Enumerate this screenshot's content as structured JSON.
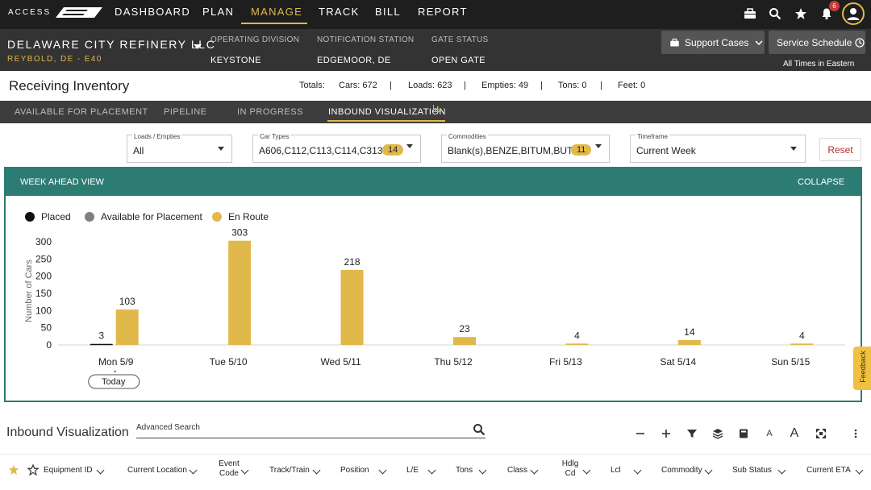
{
  "nav": {
    "brand": "ACCESS",
    "items": [
      "DASHBOARD",
      "PLAN",
      "MANAGE",
      "TRACK",
      "BILL",
      "REPORT"
    ],
    "active": "MANAGE",
    "notifications": "6"
  },
  "account": {
    "company": "DELAWARE CITY REFINERY LLC",
    "location": "REYBOLD, DE - E40",
    "operating_division_label": "OPERATING DIVISION",
    "operating_division": "KEYSTONE",
    "notification_station_label": "NOTIFICATION STATION",
    "notification_station": "EDGEMOOR, DE",
    "gate_status_label": "GATE STATUS",
    "gate_status": "OPEN GATE",
    "support_cases": "Support Cases",
    "service_schedule": "Service Schedule",
    "timezone_note": "All Times in Eastern"
  },
  "page": {
    "title": "Receiving Inventory",
    "totals": {
      "label": "Totals:",
      "cars": "Cars: 672",
      "loads": "Loads: 623",
      "empties": "Empties: 49",
      "tons": "Tons: 0",
      "feet": "Feet: 0",
      "sep": "|"
    }
  },
  "tabs": [
    "AVAILABLE FOR PLACEMENT",
    "PIPELINE",
    "IN PROGRESS",
    "INBOUND VISUALIZATION"
  ],
  "filters": {
    "loads": {
      "label": "Loads / Empties",
      "value": "All"
    },
    "car_types": {
      "label": "Car Types",
      "value": "A606,C112,C113,C114,C313...",
      "count": "14"
    },
    "commodities": {
      "label": "Commodities",
      "value": "Blank(s),BENZE,BITUM,BUT...",
      "count": "11"
    },
    "timeframe": {
      "label": "Timeframe",
      "value": "Current Week"
    },
    "reset": "Reset"
  },
  "panel": {
    "title": "WEEK AHEAD VIEW",
    "collapse": "COLLAPSE",
    "today": "Today"
  },
  "chart_data": {
    "type": "bar",
    "categories": [
      "Mon 5/9",
      "Tue 5/10",
      "Wed 5/11",
      "Thu 5/12",
      "Fri 5/13",
      "Sat 5/14",
      "Sun 5/15"
    ],
    "series": [
      {
        "name": "Placed",
        "color": "#111111",
        "values": [
          3,
          0,
          0,
          0,
          0,
          0,
          0
        ]
      },
      {
        "name": "Available for Placement",
        "color": "#808080",
        "values": [
          0,
          0,
          0,
          0,
          0,
          0,
          0
        ]
      },
      {
        "name": "En Route",
        "color": "#e1b84a",
        "values": [
          103,
          303,
          218,
          23,
          4,
          14,
          4
        ]
      }
    ],
    "ylabel": "Number of Cars",
    "yticks": [
      0,
      50,
      100,
      150,
      200,
      250,
      300
    ],
    "ylim": [
      0,
      300
    ],
    "legend": "top-left"
  },
  "grid": {
    "title": "Inbound Visualization",
    "search_label": "Advanced Search",
    "columns": [
      "Equipment ID",
      "Current Location",
      "Event Code",
      "Track/Train",
      "Position",
      "L/E",
      "Tons",
      "Class",
      "Hdlg Cd",
      "Lcl",
      "Commodity",
      "Sub Status",
      "Current ETA"
    ]
  }
}
